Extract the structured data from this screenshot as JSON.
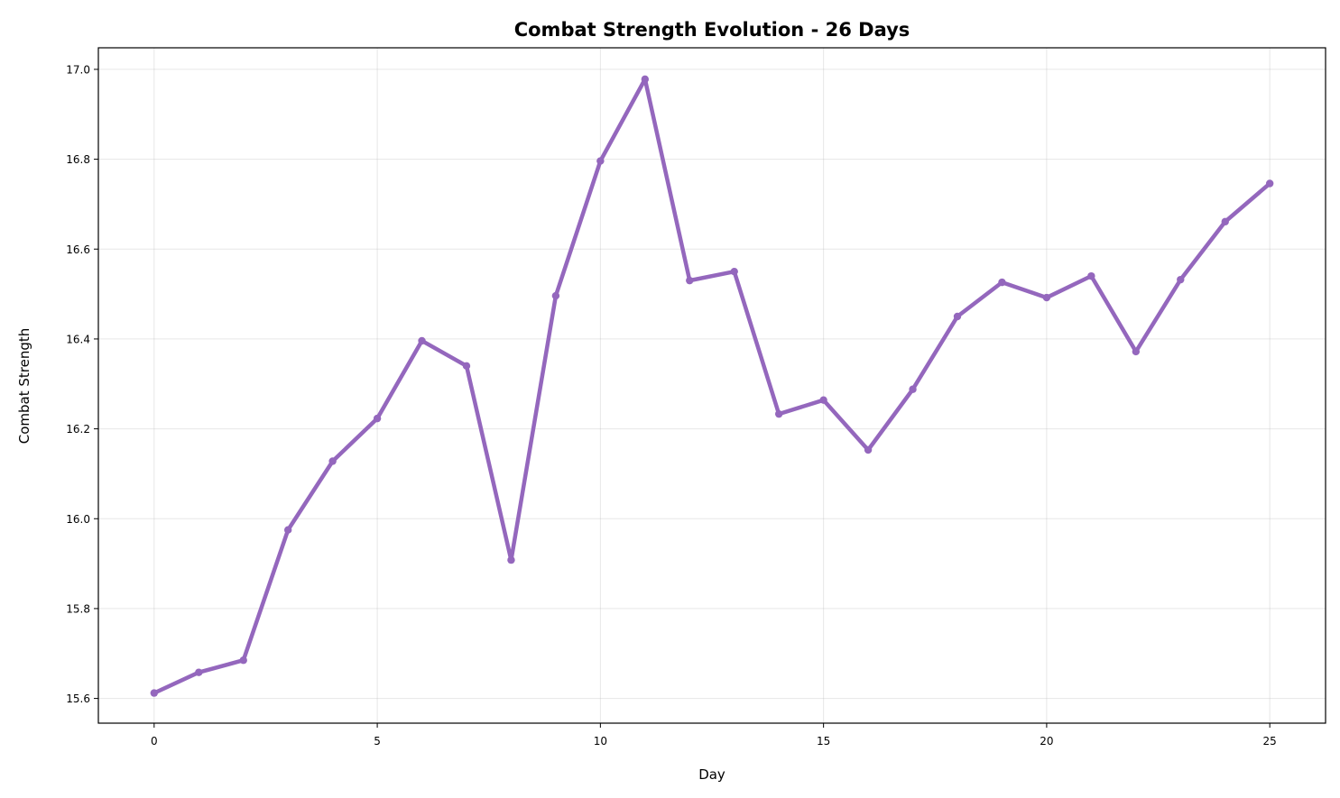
{
  "chart_data": {
    "type": "line",
    "title": "Combat Strength Evolution - 26 Days",
    "xlabel": "Day",
    "ylabel": "Combat Strength",
    "xlim": [
      -1.25,
      26.25
    ],
    "ylim": [
      15.545,
      17.048
    ],
    "x_ticks": [
      0,
      5,
      10,
      15,
      20,
      25
    ],
    "y_ticks": [
      15.6,
      15.8,
      16.0,
      16.2,
      16.4,
      16.6,
      16.8,
      17.0
    ],
    "x_tick_labels": [
      "0",
      "5",
      "10",
      "15",
      "20",
      "25"
    ],
    "y_tick_labels": [
      "15.6",
      "15.8",
      "16.0",
      "16.2",
      "16.4",
      "16.6",
      "16.8",
      "17.0"
    ],
    "grid": true,
    "series": [
      {
        "color": "#9467bd",
        "x": [
          0,
          1,
          2,
          3,
          4,
          5,
          6,
          7,
          8,
          9,
          10,
          11,
          12,
          13,
          14,
          15,
          16,
          17,
          18,
          19,
          20,
          21,
          22,
          23,
          24,
          25
        ],
        "values": [
          15.612,
          15.658,
          15.685,
          15.975,
          16.128,
          16.223,
          16.396,
          16.34,
          15.908,
          16.496,
          16.796,
          16.978,
          16.53,
          16.55,
          16.233,
          16.264,
          16.153,
          16.288,
          16.45,
          16.526,
          16.492,
          16.54,
          16.372,
          16.532,
          16.661,
          16.746
        ]
      }
    ]
  }
}
